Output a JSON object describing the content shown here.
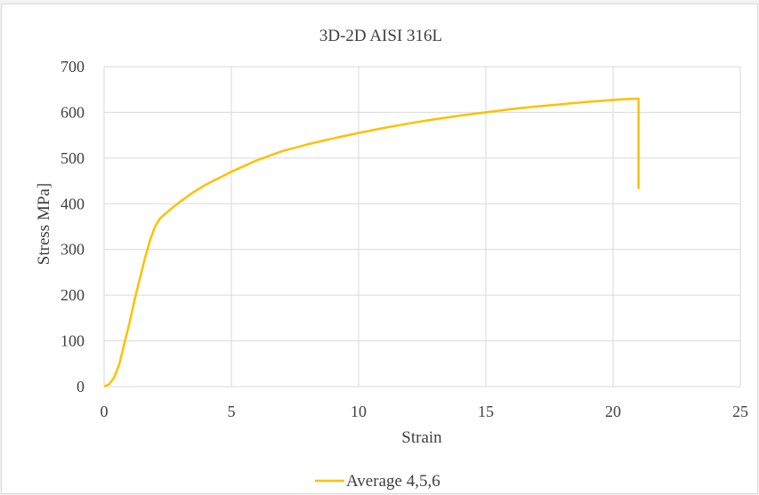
{
  "chart_data": {
    "type": "line",
    "title": "3D-2D AISI 316L",
    "xlabel": "Strain",
    "ylabel": "Stress MPa]",
    "xlim": [
      0,
      25
    ],
    "ylim": [
      0,
      700
    ],
    "x_ticks": [
      "0",
      "5",
      "10",
      "15",
      "20",
      "25"
    ],
    "y_ticks": [
      "0",
      "100",
      "200",
      "300",
      "400",
      "500",
      "600",
      "700"
    ],
    "grid": true,
    "legend_position": "bottom",
    "series": [
      {
        "name": "Average 4,5,6",
        "color": "#ffc000",
        "x": [
          0,
          0.2,
          0.4,
          0.6,
          0.8,
          1.0,
          1.2,
          1.4,
          1.6,
          1.8,
          2.0,
          2.2,
          2.4,
          2.7,
          3.0,
          3.5,
          4.0,
          5.0,
          6.0,
          7.0,
          8.0,
          9.0,
          10.0,
          11.0,
          12.0,
          13.0,
          14.0,
          15.0,
          16.0,
          17.0,
          18.0,
          19.0,
          20.0,
          20.5,
          20.9,
          21.0,
          21.0
        ],
        "y": [
          0,
          5,
          20,
          50,
          95,
          140,
          190,
          235,
          280,
          320,
          350,
          368,
          378,
          392,
          405,
          425,
          442,
          470,
          495,
          515,
          530,
          543,
          555,
          566,
          576,
          585,
          593,
          600,
          607,
          613,
          618,
          623,
          627,
          629,
          630,
          630,
          432
        ]
      }
    ]
  }
}
